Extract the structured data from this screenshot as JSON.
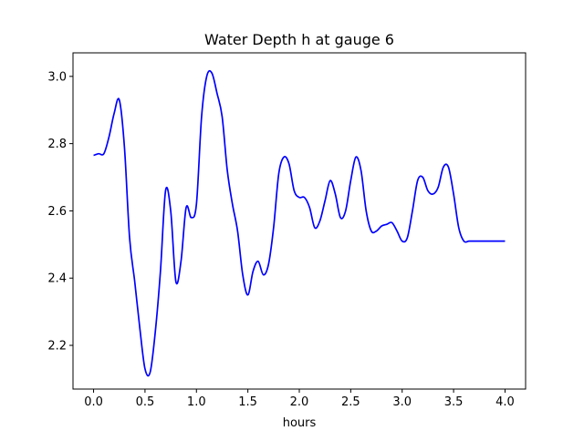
{
  "chart_data": {
    "type": "line",
    "title": "Water Depth h at gauge 6",
    "xlabel": "hours",
    "ylabel": "",
    "xlim": [
      -0.2,
      4.2
    ],
    "ylim": [
      2.07,
      3.07
    ],
    "grid": false,
    "x_ticks": [
      0.0,
      0.5,
      1.0,
      1.5,
      2.0,
      2.5,
      3.0,
      3.5,
      4.0
    ],
    "x_tick_labels": [
      "0.0",
      "0.5",
      "1.0",
      "1.5",
      "2.0",
      "2.5",
      "3.0",
      "3.5",
      "4.0"
    ],
    "y_ticks": [
      2.2,
      2.4,
      2.6,
      2.8,
      3.0
    ],
    "y_tick_labels": [
      "2.2",
      "2.4",
      "2.6",
      "2.8",
      "3.0"
    ],
    "series": [
      {
        "color": "#0000ff",
        "x": [
          0.0,
          0.05,
          0.1,
          0.15,
          0.2,
          0.25,
          0.3,
          0.35,
          0.4,
          0.45,
          0.5,
          0.55,
          0.6,
          0.65,
          0.7,
          0.75,
          0.8,
          0.85,
          0.9,
          0.95,
          1.0,
          1.05,
          1.1,
          1.15,
          1.2,
          1.25,
          1.3,
          1.35,
          1.4,
          1.45,
          1.5,
          1.55,
          1.6,
          1.65,
          1.7,
          1.75,
          1.8,
          1.85,
          1.9,
          1.95,
          2.0,
          2.05,
          2.1,
          2.15,
          2.2,
          2.25,
          2.3,
          2.35,
          2.4,
          2.45,
          2.5,
          2.55,
          2.6,
          2.65,
          2.7,
          2.75,
          2.8,
          2.85,
          2.9,
          2.95,
          3.0,
          3.05,
          3.1,
          3.15,
          3.2,
          3.25,
          3.3,
          3.35,
          3.4,
          3.45,
          3.5,
          3.55,
          3.6,
          3.65,
          3.7,
          3.75,
          3.8,
          3.85,
          3.9,
          3.95,
          4.0
        ],
        "values": [
          2.765,
          2.77,
          2.77,
          2.82,
          2.89,
          2.93,
          2.79,
          2.52,
          2.39,
          2.25,
          2.13,
          2.12,
          2.24,
          2.42,
          2.66,
          2.6,
          2.39,
          2.45,
          2.61,
          2.58,
          2.62,
          2.88,
          3.0,
          3.01,
          2.95,
          2.88,
          2.72,
          2.62,
          2.54,
          2.41,
          2.35,
          2.42,
          2.45,
          2.41,
          2.44,
          2.55,
          2.71,
          2.76,
          2.74,
          2.66,
          2.64,
          2.64,
          2.61,
          2.55,
          2.57,
          2.63,
          2.69,
          2.65,
          2.58,
          2.6,
          2.69,
          2.76,
          2.72,
          2.6,
          2.54,
          2.54,
          2.555,
          2.56,
          2.565,
          2.54,
          2.51,
          2.52,
          2.6,
          2.69,
          2.7,
          2.66,
          2.65,
          2.67,
          2.73,
          2.73,
          2.65,
          2.55,
          2.51,
          2.51,
          2.51,
          2.51,
          2.51,
          2.51,
          2.51,
          2.51,
          2.51
        ]
      }
    ]
  }
}
